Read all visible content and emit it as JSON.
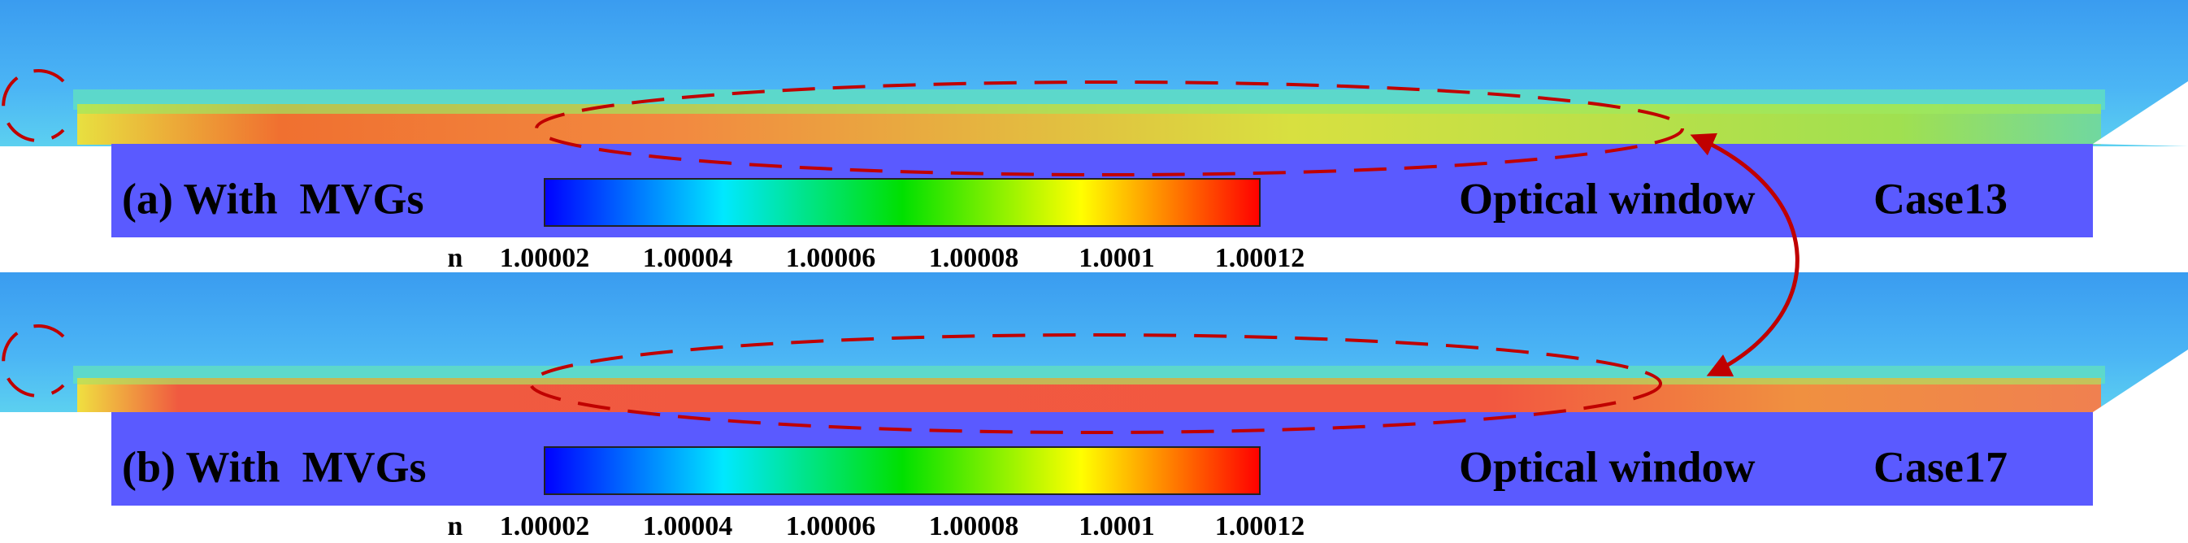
{
  "panels": [
    {
      "label": "(a) With  MVGs",
      "window": "Optical window",
      "case": "Case13"
    },
    {
      "label": "(b) With  MVGs",
      "window": "Optical window",
      "case": "Case17"
    }
  ],
  "colorbar": {
    "label": "n",
    "ticks": [
      1.00002,
      1.00004,
      1.00006,
      1.00008,
      1.0001,
      1.00012
    ]
  }
}
